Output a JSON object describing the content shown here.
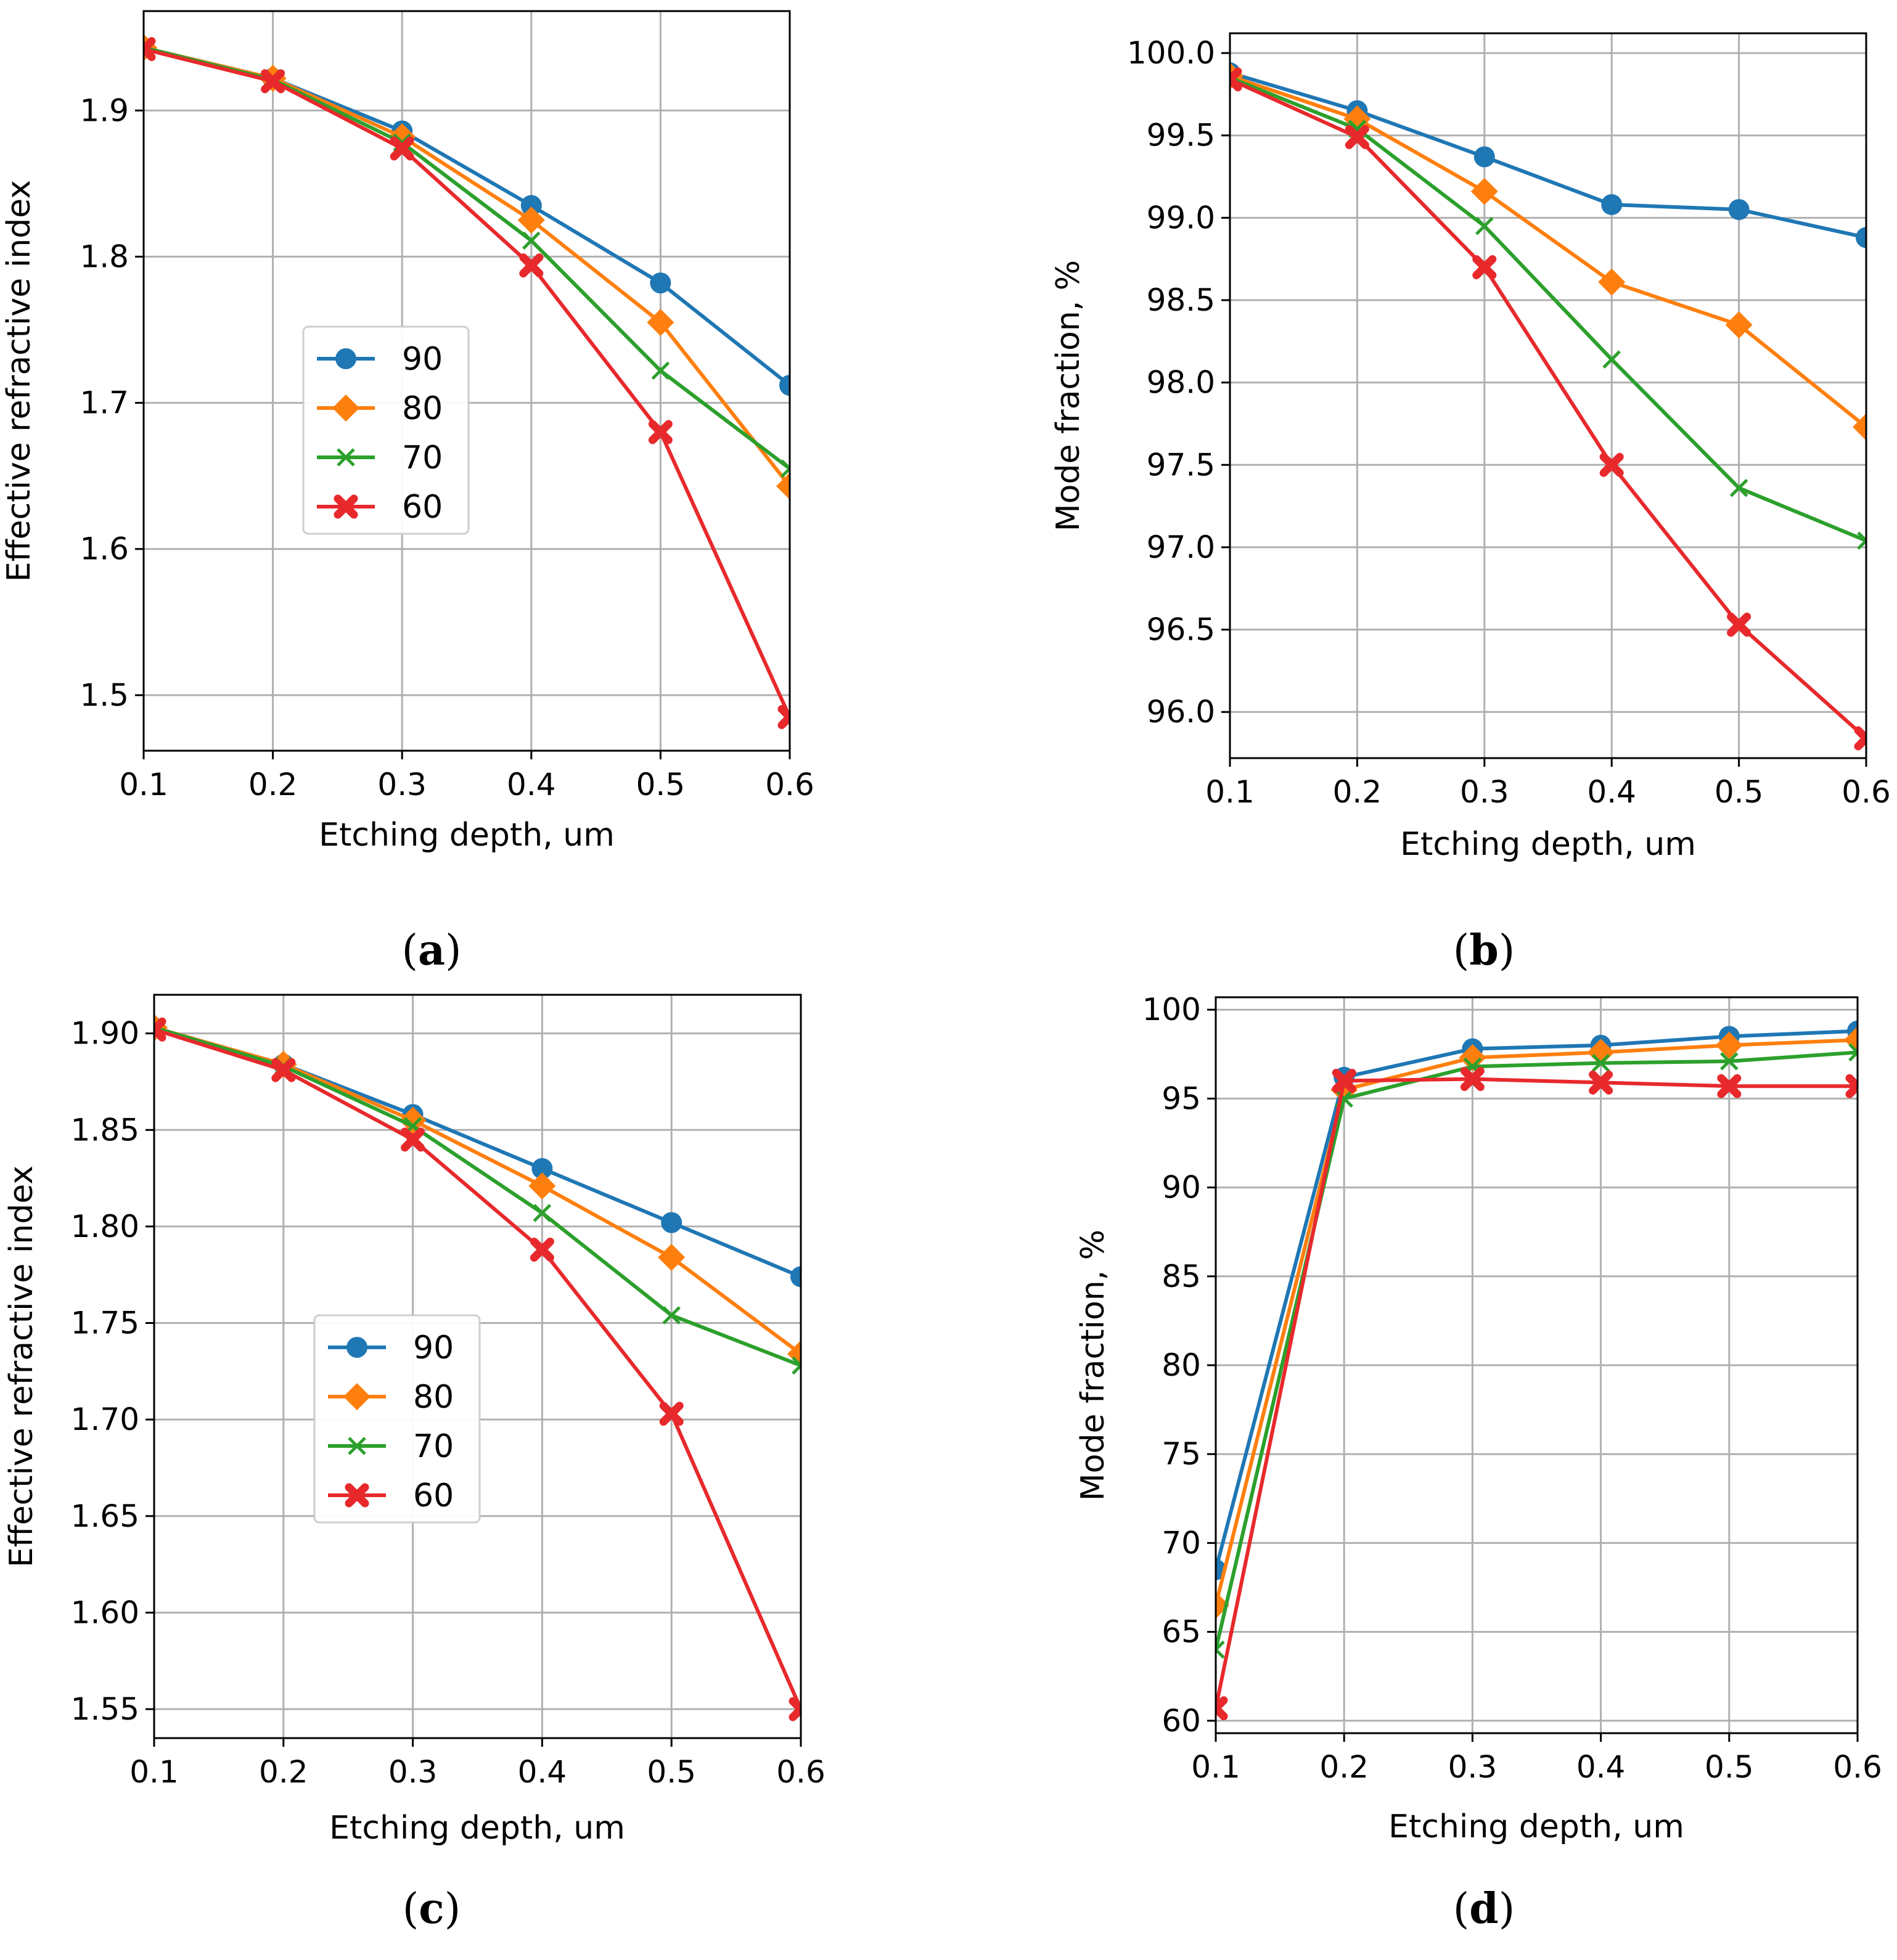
{
  "colors": {
    "s90": "#1f77b4",
    "s80": "#ff7f0e",
    "s70": "#2ca02c",
    "s60": "#e8292c",
    "grid": "#b0b0b0",
    "axis": "#000000"
  },
  "legend_entries": [
    "90",
    "80",
    "70",
    "60"
  ],
  "chart_data": [
    {
      "panel": "a",
      "caption": {
        "open": "(",
        "letter": "a",
        "close": ")"
      },
      "type": "line",
      "xlabel": "Etching depth, um",
      "ylabel": "Effective refractive index",
      "xlim": [
        0.1,
        0.6
      ],
      "ylim": [
        1.462,
        1.968
      ],
      "xticks": [
        0.1,
        0.2,
        0.3,
        0.4,
        0.5,
        0.6
      ],
      "xtick_labels": [
        "0.1",
        "0.2",
        "0.3",
        "0.4",
        "0.5",
        "0.6"
      ],
      "yticks": [
        1.5,
        1.6,
        1.7,
        1.8,
        1.9
      ],
      "ytick_labels": [
        "1.5",
        "1.6",
        "1.7",
        "1.8",
        "1.9"
      ],
      "grid": true,
      "legend": "center",
      "x": [
        0.1,
        0.2,
        0.3,
        0.4,
        0.5,
        0.6
      ],
      "series": [
        {
          "name": "90",
          "values": [
            1.943,
            1.922,
            1.886,
            1.835,
            1.782,
            1.712
          ]
        },
        {
          "name": "80",
          "values": [
            1.943,
            1.922,
            1.882,
            1.825,
            1.755,
            1.643
          ]
        },
        {
          "name": "70",
          "values": [
            1.943,
            1.921,
            1.878,
            1.811,
            1.722,
            1.655
          ]
        },
        {
          "name": "60",
          "values": [
            1.942,
            1.92,
            1.874,
            1.794,
            1.68,
            1.485
          ]
        }
      ]
    },
    {
      "panel": "b",
      "caption": {
        "open": "(",
        "letter": "b",
        "close": ")"
      },
      "type": "line",
      "xlabel": "Etching depth, um",
      "ylabel": "Mode fraction, %",
      "xlim": [
        0.1,
        0.6
      ],
      "ylim": [
        95.72,
        100.12
      ],
      "xticks": [
        0.1,
        0.2,
        0.3,
        0.4,
        0.5,
        0.6
      ],
      "xtick_labels": [
        "0.1",
        "0.2",
        "0.3",
        "0.4",
        "0.5",
        "0.6"
      ],
      "yticks": [
        96.0,
        96.5,
        97.0,
        97.5,
        98.0,
        98.5,
        99.0,
        99.5,
        100.0
      ],
      "ytick_labels": [
        "96.0",
        "96.5",
        "97.0",
        "97.5",
        "98.0",
        "98.5",
        "99.0",
        "99.5",
        "100.0"
      ],
      "grid": true,
      "legend": "none",
      "x": [
        0.1,
        0.2,
        0.3,
        0.4,
        0.5,
        0.6
      ],
      "series": [
        {
          "name": "90",
          "values": [
            99.88,
            99.65,
            99.37,
            99.08,
            99.05,
            98.88
          ]
        },
        {
          "name": "80",
          "values": [
            99.86,
            99.6,
            99.16,
            98.61,
            98.35,
            97.73
          ]
        },
        {
          "name": "70",
          "values": [
            99.85,
            99.54,
            98.95,
            98.14,
            97.36,
            97.04
          ]
        },
        {
          "name": "60",
          "values": [
            99.84,
            99.49,
            98.7,
            97.5,
            96.53,
            95.84
          ]
        }
      ]
    },
    {
      "panel": "c",
      "caption": {
        "open": "(",
        "letter": "c",
        "close": ")"
      },
      "type": "line",
      "xlabel": "Etching depth, um",
      "ylabel": "Effective refractive index",
      "xlim": [
        0.1,
        0.6
      ],
      "ylim": [
        1.535,
        1.92
      ],
      "xticks": [
        0.1,
        0.2,
        0.3,
        0.4,
        0.5,
        0.6
      ],
      "xtick_labels": [
        "0.1",
        "0.2",
        "0.3",
        "0.4",
        "0.5",
        "0.6"
      ],
      "yticks": [
        1.55,
        1.6,
        1.65,
        1.7,
        1.75,
        1.8,
        1.85,
        1.9
      ],
      "ytick_labels": [
        "1.55",
        "1.60",
        "1.65",
        "1.70",
        "1.75",
        "1.80",
        "1.85",
        "1.90"
      ],
      "grid": true,
      "legend": "center-left",
      "x": [
        0.1,
        0.2,
        0.3,
        0.4,
        0.5,
        0.6
      ],
      "series": [
        {
          "name": "90",
          "values": [
            1.903,
            1.884,
            1.858,
            1.83,
            1.802,
            1.774
          ]
        },
        {
          "name": "80",
          "values": [
            1.903,
            1.884,
            1.855,
            1.821,
            1.784,
            1.734
          ]
        },
        {
          "name": "70",
          "values": [
            1.903,
            1.883,
            1.852,
            1.807,
            1.754,
            1.728
          ]
        },
        {
          "name": "60",
          "values": [
            1.902,
            1.881,
            1.845,
            1.788,
            1.703,
            1.55
          ]
        }
      ]
    },
    {
      "panel": "d",
      "caption": {
        "open": "(",
        "letter": "d",
        "close": ")"
      },
      "type": "line",
      "xlabel": "Etching depth, um",
      "ylabel": "Mode fraction, %",
      "xlim": [
        0.1,
        0.6
      ],
      "ylim": [
        59.3,
        100.7
      ],
      "xticks": [
        0.1,
        0.2,
        0.3,
        0.4,
        0.5,
        0.6
      ],
      "xtick_labels": [
        "0.1",
        "0.2",
        "0.3",
        "0.4",
        "0.5",
        "0.6"
      ],
      "yticks": [
        60,
        65,
        70,
        75,
        80,
        85,
        90,
        95,
        100
      ],
      "ytick_labels": [
        "60",
        "65",
        "70",
        "75",
        "80",
        "85",
        "90",
        "95",
        "100"
      ],
      "grid": true,
      "legend": "none",
      "x": [
        0.1,
        0.2,
        0.3,
        0.4,
        0.5,
        0.6
      ],
      "series": [
        {
          "name": "90",
          "values": [
            68.5,
            96.2,
            97.8,
            98.0,
            98.5,
            98.8
          ]
        },
        {
          "name": "80",
          "values": [
            66.5,
            95.5,
            97.3,
            97.6,
            98.0,
            98.3
          ]
        },
        {
          "name": "70",
          "values": [
            64.0,
            95.0,
            96.8,
            97.0,
            97.1,
            97.6
          ]
        },
        {
          "name": "60",
          "values": [
            60.7,
            96.0,
            96.1,
            95.9,
            95.7,
            95.7
          ]
        }
      ]
    }
  ]
}
